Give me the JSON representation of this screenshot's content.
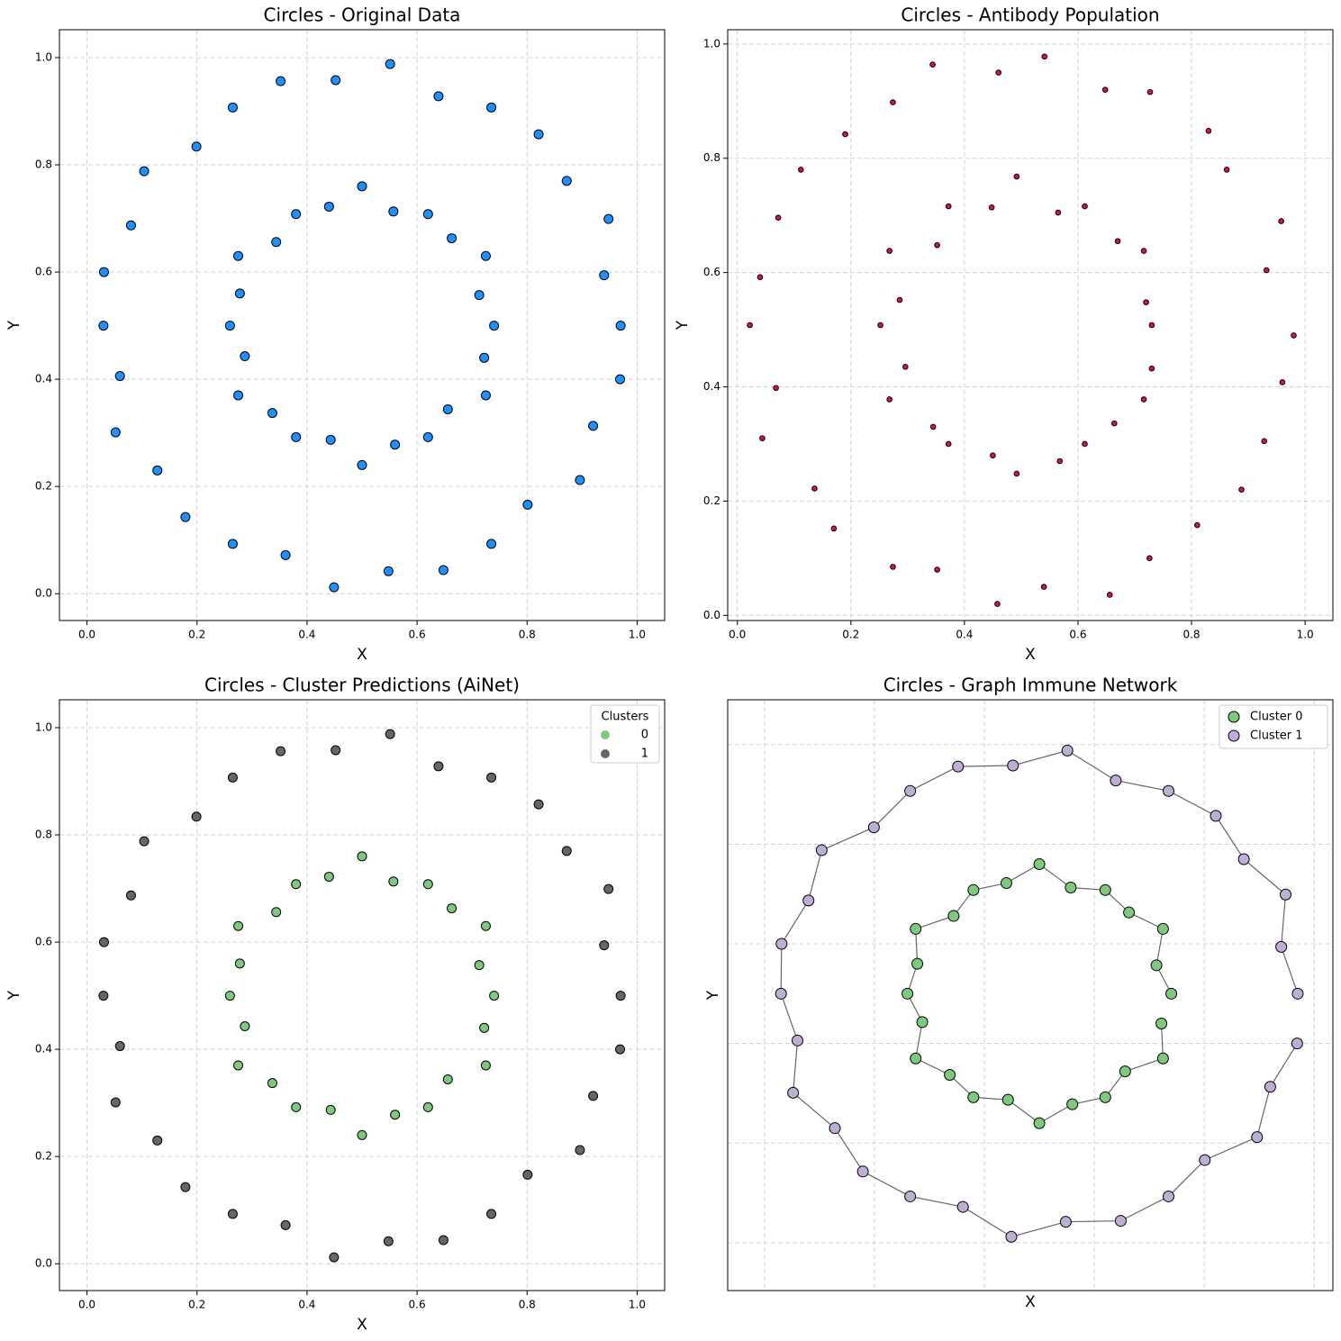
{
  "chart_data": [
    {
      "type": "scatter",
      "title": "Circles - Original Data",
      "xlabel": "X",
      "ylabel": "Y",
      "grid": true,
      "xlim": [
        -0.05,
        1.05
      ],
      "ylim": [
        -0.05,
        1.052
      ],
      "xticks": [
        {
          "value": 0,
          "label": "0.0"
        },
        0.2,
        0.4,
        0.6,
        0.8,
        {
          "value": 1,
          "label": "1.0"
        }
      ],
      "yticks": [
        {
          "value": 0,
          "label": "0.0"
        },
        0.2,
        0.4,
        0.6,
        0.8,
        {
          "value": 1,
          "label": "1.0"
        }
      ],
      "series": [
        {
          "color": "#1e90ff",
          "x": [
            0.97,
            0.94,
            0.948,
            0.872,
            0.821,
            0.735,
            0.639,
            0.551,
            0.452,
            0.352,
            0.265,
            0.199,
            0.104,
            0.08,
            0.031,
            0.03,
            0.06,
            0.052,
            0.128,
            0.179,
            0.265,
            0.361,
            0.449,
            0.548,
            0.648,
            0.735,
            0.801,
            0.896,
            0.92,
            0.969,
            0.74,
            0.713,
            0.725,
            0.663,
            0.62,
            0.557,
            0.5,
            0.44,
            0.38,
            0.344,
            0.275,
            0.278,
            0.26,
            0.287,
            0.275,
            0.337,
            0.38,
            0.443,
            0.5,
            0.56,
            0.62,
            0.656,
            0.725,
            0.722
          ],
          "y": [
            0.5,
            0.594,
            0.699,
            0.77,
            0.857,
            0.907,
            0.928,
            0.988,
            0.958,
            0.956,
            0.907,
            0.834,
            0.788,
            0.687,
            0.6,
            0.5,
            0.406,
            0.301,
            0.23,
            0.143,
            0.093,
            0.072,
            0.012,
            0.042,
            0.044,
            0.093,
            0.166,
            0.212,
            0.313,
            0.4,
            0.5,
            0.557,
            0.63,
            0.663,
            0.708,
            0.713,
            0.76,
            0.722,
            0.708,
            0.656,
            0.63,
            0.56,
            0.5,
            0.443,
            0.37,
            0.337,
            0.292,
            0.287,
            0.24,
            0.278,
            0.292,
            0.344,
            0.37,
            0.44
          ]
        }
      ]
    },
    {
      "type": "scatter",
      "title": "Circles - Antibody Population",
      "xlabel": "X",
      "ylabel": "Y",
      "grid": true,
      "xlim": [
        -0.017,
        1.049
      ],
      "ylim": [
        -0.009,
        1.025
      ],
      "xticks": [
        {
          "value": 0,
          "label": "0.0"
        },
        0.2,
        0.4,
        0.6,
        0.8,
        {
          "value": 1,
          "label": "1.0"
        }
      ],
      "yticks": [
        {
          "value": 0,
          "label": "0.0"
        },
        0.2,
        0.4,
        0.6,
        0.8,
        {
          "value": 1,
          "label": "1.0"
        }
      ],
      "series": [
        {
          "color": "#dc143c",
          "x": [
            0.98,
            0.932,
            0.958,
            0.862,
            0.83,
            0.727,
            0.648,
            0.541,
            0.46,
            0.344,
            0.274,
            0.19,
            0.112,
            0.072,
            0.04,
            0.022,
            0.068,
            0.044,
            0.136,
            0.17,
            0.274,
            0.352,
            0.458,
            0.54,
            0.656,
            0.726,
            0.81,
            0.888,
            0.928,
            0.96,
            0.73,
            0.72,
            0.716,
            0.67,
            0.612,
            0.565,
            0.492,
            0.448,
            0.372,
            0.352,
            0.268,
            0.286,
            0.252,
            0.296,
            0.268,
            0.345,
            0.372,
            0.45,
            0.492,
            0.568,
            0.612,
            0.664,
            0.716,
            0.73
          ],
          "y": [
            0.49,
            0.604,
            0.69,
            0.78,
            0.848,
            0.916,
            0.92,
            0.978,
            0.95,
            0.964,
            0.898,
            0.842,
            0.78,
            0.696,
            0.592,
            0.508,
            0.398,
            0.31,
            0.222,
            0.152,
            0.085,
            0.08,
            0.02,
            0.05,
            0.036,
            0.1,
            0.158,
            0.22,
            0.305,
            0.408,
            0.508,
            0.548,
            0.638,
            0.655,
            0.716,
            0.705,
            0.768,
            0.714,
            0.716,
            0.648,
            0.638,
            0.552,
            0.508,
            0.435,
            0.378,
            0.33,
            0.3,
            0.28,
            0.248,
            0.27,
            0.3,
            0.336,
            0.378,
            0.432
          ]
        }
      ]
    },
    {
      "type": "scatter",
      "title": "Circles - Cluster Predictions (AiNet)",
      "xlabel": "X",
      "ylabel": "Y",
      "grid": true,
      "legend_title": "Clusters",
      "legend": "upper right",
      "xlim": [
        -0.05,
        1.05
      ],
      "ylim": [
        -0.05,
        1.052
      ],
      "xticks": [
        {
          "value": 0,
          "label": "0.0"
        },
        0.2,
        0.4,
        0.6,
        0.8,
        {
          "value": 1,
          "label": "1.0"
        }
      ],
      "yticks": [
        {
          "value": 0,
          "label": "0.0"
        },
        0.2,
        0.4,
        0.6,
        0.8,
        {
          "value": 1,
          "label": "1.0"
        }
      ],
      "series": [
        {
          "name": "0",
          "color": "#7fc97f",
          "x": [
            0.74,
            0.713,
            0.725,
            0.663,
            0.62,
            0.557,
            0.5,
            0.44,
            0.38,
            0.344,
            0.275,
            0.278,
            0.26,
            0.287,
            0.275,
            0.337,
            0.38,
            0.443,
            0.5,
            0.56,
            0.62,
            0.656,
            0.725,
            0.722
          ],
          "y": [
            0.5,
            0.557,
            0.63,
            0.663,
            0.708,
            0.713,
            0.76,
            0.722,
            0.708,
            0.656,
            0.63,
            0.56,
            0.5,
            0.443,
            0.37,
            0.337,
            0.292,
            0.287,
            0.24,
            0.278,
            0.292,
            0.344,
            0.37,
            0.44
          ]
        },
        {
          "name": "1",
          "color": "#666666",
          "x": [
            0.97,
            0.94,
            0.948,
            0.872,
            0.821,
            0.735,
            0.639,
            0.551,
            0.452,
            0.352,
            0.265,
            0.199,
            0.104,
            0.08,
            0.031,
            0.03,
            0.06,
            0.052,
            0.128,
            0.179,
            0.265,
            0.361,
            0.449,
            0.548,
            0.648,
            0.735,
            0.801,
            0.896,
            0.92,
            0.969
          ],
          "y": [
            0.5,
            0.594,
            0.699,
            0.77,
            0.857,
            0.907,
            0.928,
            0.988,
            0.958,
            0.956,
            0.907,
            0.834,
            0.788,
            0.687,
            0.6,
            0.5,
            0.406,
            0.301,
            0.23,
            0.143,
            0.093,
            0.072,
            0.012,
            0.042,
            0.044,
            0.093,
            0.166,
            0.212,
            0.313,
            0.4
          ]
        }
      ]
    },
    {
      "type": "graph",
      "title": "Circles - Graph Immune Network",
      "xlabel": "X",
      "ylabel": "Y",
      "grid": true,
      "tick_labels": false,
      "legend": "upper right",
      "xlim": [
        -0.067,
        1.034
      ],
      "ylim": [
        -0.096,
        1.09
      ],
      "xticks": [
        0,
        0.2,
        0.4,
        0.6,
        0.8,
        1
      ],
      "yticks": [
        0,
        0.2,
        0.4,
        0.6,
        0.8,
        1
      ],
      "series": [
        {
          "name": "Cluster 0",
          "color": "#7fc97f",
          "connect": true,
          "x": [
            0.74,
            0.713,
            0.725,
            0.663,
            0.62,
            0.557,
            0.5,
            0.44,
            0.38,
            0.344,
            0.275,
            0.278,
            0.26,
            0.287,
            0.275,
            0.337,
            0.38,
            0.443,
            0.5,
            0.56,
            0.62,
            0.656,
            0.725,
            0.722
          ],
          "y": [
            0.5,
            0.557,
            0.63,
            0.663,
            0.708,
            0.713,
            0.76,
            0.722,
            0.708,
            0.656,
            0.63,
            0.56,
            0.5,
            0.443,
            0.37,
            0.337,
            0.292,
            0.287,
            0.24,
            0.278,
            0.292,
            0.344,
            0.37,
            0.44
          ]
        },
        {
          "name": "Cluster 1",
          "color": "#beaed4",
          "connect": true,
          "x": [
            0.97,
            0.94,
            0.948,
            0.872,
            0.821,
            0.735,
            0.639,
            0.551,
            0.452,
            0.352,
            0.265,
            0.199,
            0.104,
            0.08,
            0.031,
            0.03,
            0.06,
            0.052,
            0.128,
            0.179,
            0.265,
            0.361,
            0.449,
            0.548,
            0.648,
            0.735,
            0.801,
            0.896,
            0.92,
            0.969
          ],
          "y": [
            0.5,
            0.594,
            0.699,
            0.77,
            0.857,
            0.907,
            0.928,
            0.988,
            0.958,
            0.956,
            0.907,
            0.834,
            0.788,
            0.687,
            0.6,
            0.5,
            0.406,
            0.301,
            0.23,
            0.143,
            0.093,
            0.072,
            0.012,
            0.042,
            0.044,
            0.093,
            0.166,
            0.212,
            0.313,
            0.4
          ]
        }
      ]
    }
  ]
}
